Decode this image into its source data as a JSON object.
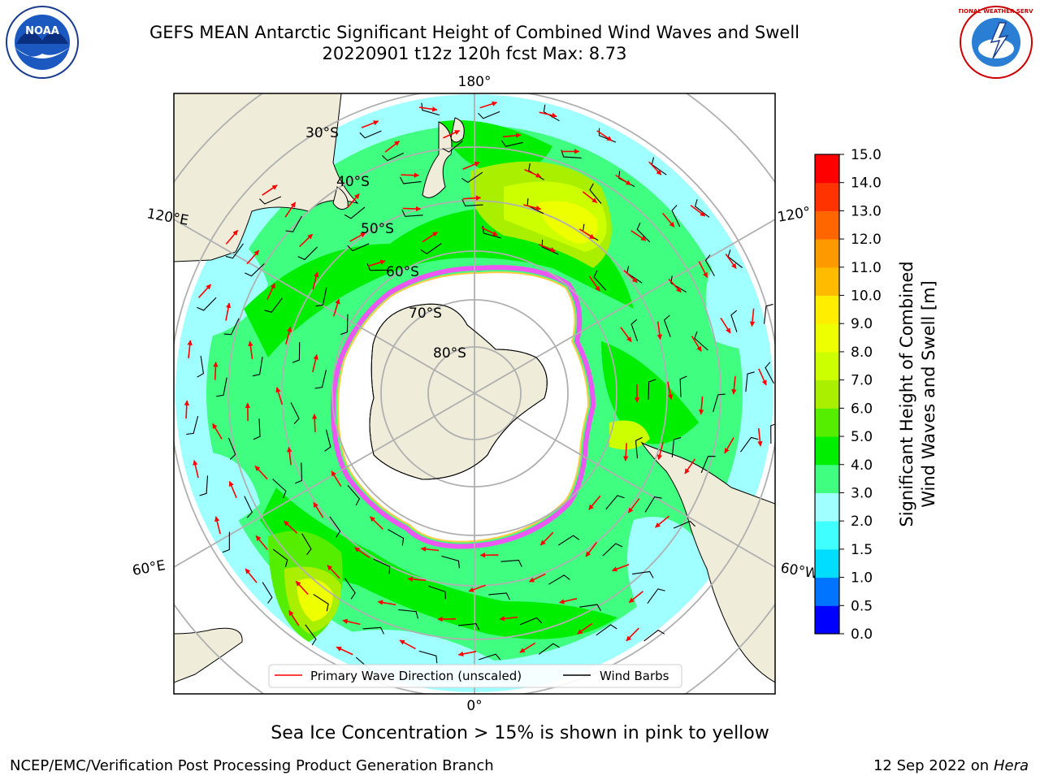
{
  "title": {
    "line1": "GEFS MEAN Antarctic Significant Height of Combined Wind Waves and Swell",
    "line2": "20220901 t12z 120h fcst   Max: 8.73"
  },
  "map": {
    "projection": "south-polar-stereographic",
    "longitude_labels": [
      "180°",
      "120°E",
      "120°",
      "60°E",
      "60°W",
      "0°"
    ],
    "latitude_labels": [
      "30°S",
      "40°S",
      "50°S",
      "60°S",
      "70°S",
      "80°S"
    ]
  },
  "legend": {
    "primary_wave": "Primary Wave Direction (unscaled)",
    "wind_barbs": "Wind Barbs"
  },
  "colorbar": {
    "label_line1": "Significant Height of Combined",
    "label_line2": "Wind Waves and Swell [m]",
    "ticks": [
      "0.0",
      "0.5",
      "1.0",
      "1.5",
      "2.0",
      "3.0",
      "4.0",
      "5.0",
      "6.0",
      "7.0",
      "8.0",
      "9.0",
      "10.0",
      "11.0",
      "12.0",
      "13.0",
      "14.0",
      "15.0"
    ],
    "colors": [
      "#0000ff",
      "#0073ff",
      "#00ddff",
      "#40ffff",
      "#a0ffff",
      "#40ff80",
      "#00ee00",
      "#55ee00",
      "#aaee00",
      "#ccff00",
      "#eeff00",
      "#ffee00",
      "#ffbb00",
      "#ff9900",
      "#ff6600",
      "#ff3300",
      "#ff0000"
    ]
  },
  "colors": {
    "land": "#efecd9",
    "antarctica_ice": "#ffffff",
    "sea_ice_edge": "#ff44ff",
    "wave_arrow": "#ff0000",
    "barb": "#000000",
    "grid": "#b0b0b0"
  },
  "logos": {
    "noaa_text": "NOAA",
    "nws_text": "NATIONAL WEATHER SERVICE"
  },
  "sea_ice_note": "Sea Ice Concentration > 15% is shown in pink to yellow",
  "footer": {
    "credit": "NCEP/EMC/Verification Post Processing Product Generation Branch",
    "date": "12 Sep 2022 on",
    "host": "Hera"
  }
}
